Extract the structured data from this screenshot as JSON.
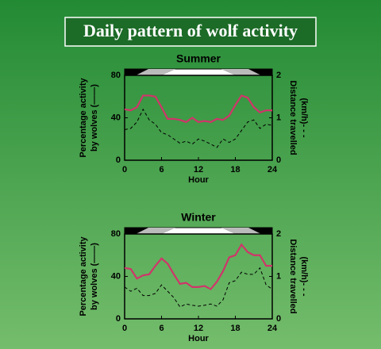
{
  "title": "Daily pattern of wolf activity",
  "chart_data": [
    {
      "type": "line",
      "title": "Summer",
      "x": [
        0,
        1,
        2,
        3,
        4,
        5,
        6,
        7,
        8,
        9,
        10,
        11,
        12,
        13,
        14,
        15,
        16,
        17,
        18,
        19,
        20,
        21,
        22,
        23,
        24
      ],
      "xlim": [
        0,
        24
      ],
      "xticks": [
        0,
        6,
        12,
        18,
        24
      ],
      "xlabel": "Hour",
      "ylim": [
        0,
        80
      ],
      "yticks": [
        0,
        40,
        80
      ],
      "ylabel": [
        "Percentage activity",
        "by wolves (——)"
      ],
      "y2lim": [
        0,
        2
      ],
      "y2ticks": [
        0,
        1,
        2
      ],
      "y2label": [
        "Distance travelled",
        "(km/h)- - -"
      ],
      "series": [
        {
          "color": "#d0356a",
          "dashed": false,
          "values": [
            48,
            47,
            50,
            61,
            61,
            60,
            50,
            39,
            39,
            38,
            36,
            40,
            36,
            37,
            36,
            39,
            38,
            42,
            52,
            61,
            59,
            50,
            45,
            47,
            47
          ]
        },
        {
          "color": "#000000",
          "dashed": true,
          "axis": "y2",
          "values": [
            0.72,
            0.75,
            0.9,
            1.2,
            0.95,
            0.85,
            0.65,
            0.6,
            0.5,
            0.4,
            0.45,
            0.38,
            0.5,
            0.45,
            0.38,
            0.3,
            0.5,
            0.42,
            0.5,
            0.7,
            0.9,
            0.95,
            0.75,
            0.85,
            0.82
          ]
        }
      ]
    },
    {
      "type": "line",
      "title": "Winter",
      "x": [
        0,
        1,
        2,
        3,
        4,
        5,
        6,
        7,
        8,
        9,
        10,
        11,
        12,
        13,
        14,
        15,
        16,
        17,
        18,
        19,
        20,
        21,
        22,
        23,
        24
      ],
      "xlim": [
        0,
        24
      ],
      "xticks": [
        0,
        6,
        12,
        18,
        24
      ],
      "xlabel": "Hour",
      "ylim": [
        0,
        80
      ],
      "yticks": [
        0,
        40,
        80
      ],
      "ylabel": [
        "Percentage activity",
        "by wolves (——)"
      ],
      "y2lim": [
        0,
        2
      ],
      "y2ticks": [
        0,
        1,
        2
      ],
      "y2label": [
        "Distance travelled",
        "(km/h)- - -"
      ],
      "series": [
        {
          "color": "#d0356a",
          "dashed": false,
          "values": [
            48,
            47,
            38,
            41,
            42,
            50,
            57,
            52,
            42,
            33,
            34,
            30,
            30,
            31,
            28,
            35,
            45,
            58,
            60,
            70,
            63,
            60,
            60,
            50,
            50
          ]
        },
        {
          "color": "#000000",
          "dashed": true,
          "axis": "y2",
          "values": [
            0.75,
            0.65,
            0.72,
            0.55,
            0.55,
            0.6,
            0.8,
            0.65,
            0.5,
            0.28,
            0.35,
            0.32,
            0.3,
            0.32,
            0.35,
            0.3,
            0.45,
            0.85,
            0.9,
            1.1,
            1.05,
            1.05,
            1.2,
            0.8,
            0.7
          ]
        }
      ]
    }
  ]
}
